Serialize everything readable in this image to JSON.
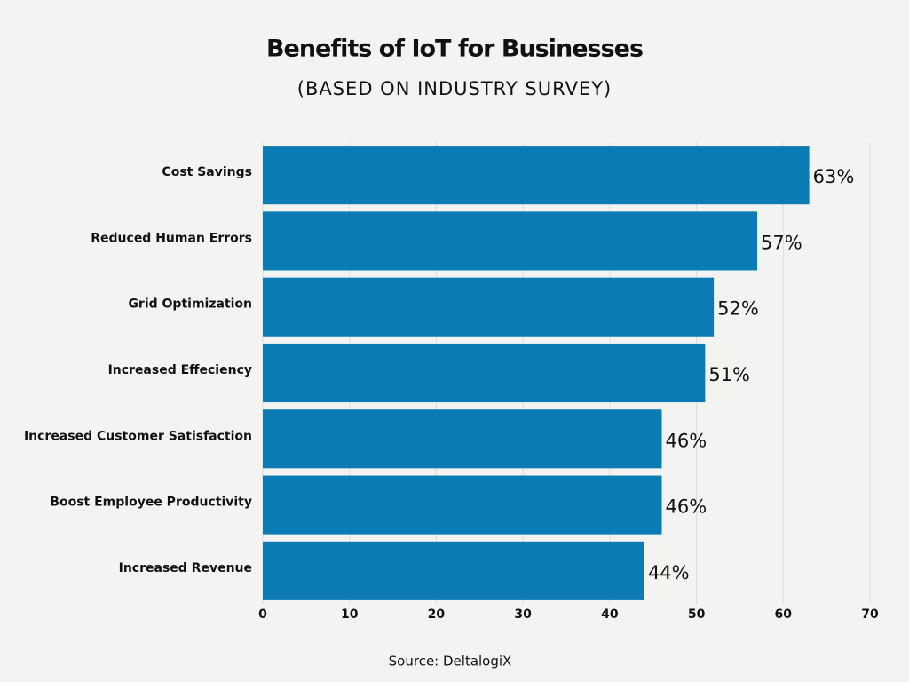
{
  "chart_data": {
    "type": "bar",
    "orientation": "horizontal",
    "title": "Benefits of IoT for Businesses",
    "subtitle": "(BASED ON INDUSTRY SURVEY)",
    "categories": [
      "Cost Savings",
      "Reduced Human Errors",
      "Grid Optimization",
      "Increased Effeciency",
      "Increased Customer Satisfaction",
      "Boost Employee Productivity",
      "Increased Revenue"
    ],
    "values": [
      63,
      57,
      52,
      51,
      46,
      46,
      44
    ],
    "value_labels": [
      "63%",
      "57%",
      "52%",
      "51%",
      "46%",
      "46%",
      "44%"
    ],
    "color": "#0a7bb3",
    "xlim": [
      0,
      70
    ],
    "xticks": [
      0,
      10,
      20,
      30,
      40,
      50,
      60,
      70
    ],
    "grid": true,
    "source": "Source: DeltalogiX"
  }
}
